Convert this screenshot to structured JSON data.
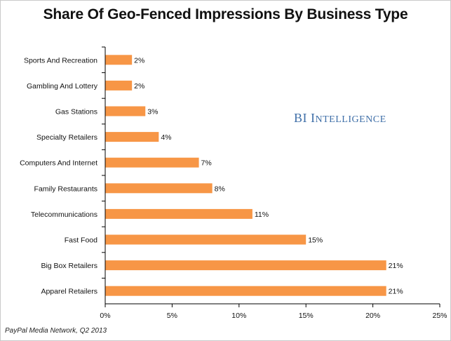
{
  "title": "Share Of Geo-Fenced Impressions By Business Type",
  "brand": {
    "text": "BI INTELLIGENCE",
    "color": "#3f6fa8"
  },
  "source": "PayPal Media Network, Q2 2013",
  "colors": {
    "bar": "#f79646",
    "axis": "#000000"
  },
  "chart_data": {
    "type": "bar",
    "orientation": "horizontal",
    "title": "Share Of Geo-Fenced Impressions By Business Type",
    "categories": [
      "Sports And Recreation",
      "Gambling And Lottery",
      "Gas Stations",
      "Specialty Retailers",
      "Computers And Internet",
      "Family Restaurants",
      "Telecommunications",
      "Fast Food",
      "Big Box Retailers",
      "Apparel Retailers"
    ],
    "values": [
      2,
      2,
      3,
      4,
      7,
      8,
      11,
      15,
      21,
      21
    ],
    "data_labels": [
      "2%",
      "2%",
      "3%",
      "4%",
      "7%",
      "8%",
      "11%",
      "15%",
      "21%",
      "21%"
    ],
    "xlim": [
      0,
      25
    ],
    "xticks": [
      0,
      5,
      10,
      15,
      20,
      25
    ],
    "xtick_labels": [
      "0%",
      "5%",
      "10%",
      "15%",
      "20%",
      "25%"
    ],
    "grid": false,
    "legend": "none"
  }
}
